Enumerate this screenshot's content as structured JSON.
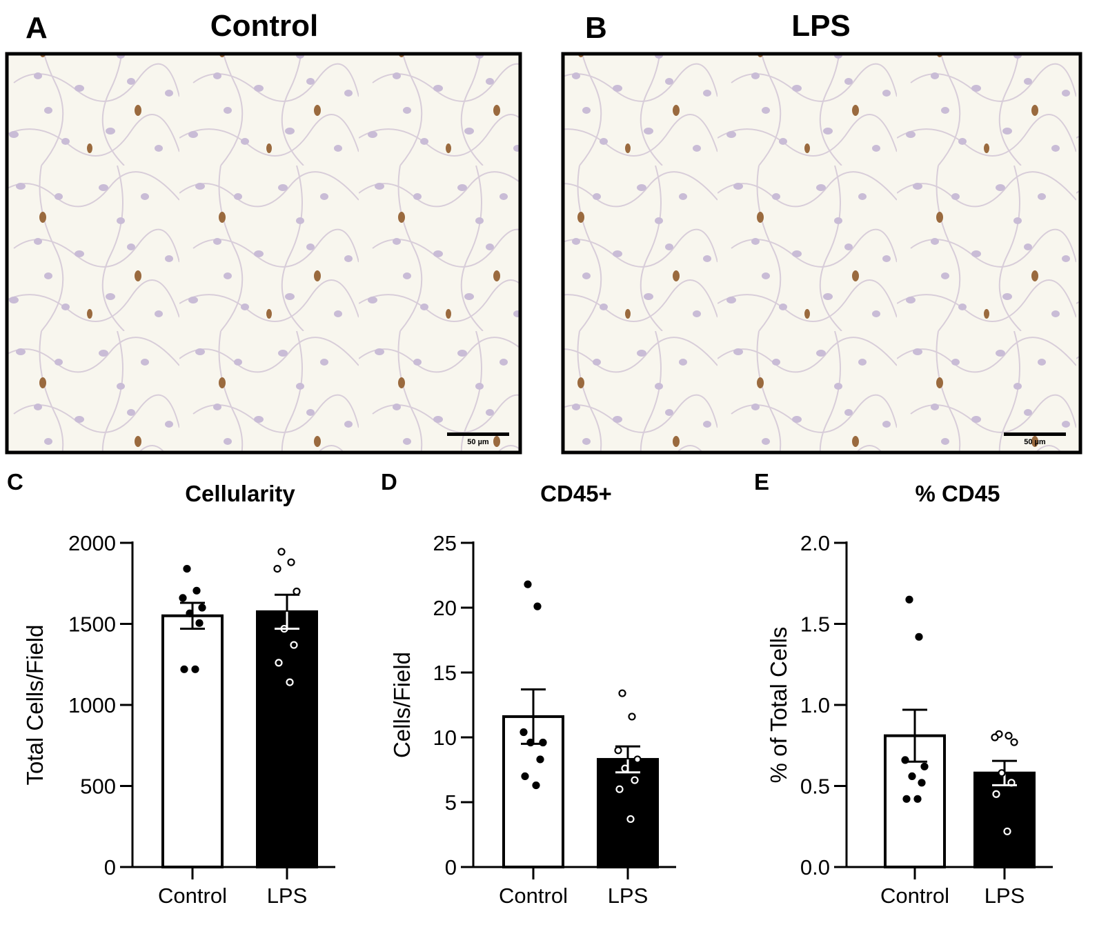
{
  "panels_top": [
    {
      "letter": "A",
      "title": "Control",
      "scale_bar": "50 µm"
    },
    {
      "letter": "B",
      "title": "LPS",
      "scale_bar": "50 µm"
    }
  ],
  "charts": {
    "C": {
      "letter": "C"
    },
    "D": {
      "letter": "D"
    },
    "E": {
      "letter": "E"
    }
  },
  "chart_data": [
    {
      "type": "bar",
      "panel": "C",
      "title": "Cellularity",
      "ylabel": "Total Cells/Field",
      "ylim": [
        0,
        2000
      ],
      "yticks": [
        "0",
        "500",
        "1000",
        "1500",
        "2000"
      ],
      "categories": [
        "Control",
        "LPS"
      ],
      "values": [
        1550,
        1575
      ],
      "sem": [
        80,
        105
      ],
      "bar_colors": [
        "#ffffff",
        "#000000"
      ],
      "points": [
        [
          1840,
          1705,
          1660,
          1600,
          1565,
          1505,
          1220,
          1220
        ],
        [
          1945,
          1880,
          1840,
          1700,
          1470,
          1370,
          1260,
          1140
        ]
      ]
    },
    {
      "type": "bar",
      "panel": "D",
      "title": "CD45+",
      "ylabel": "Cells/Field",
      "ylim": [
        0,
        25
      ],
      "yticks": [
        "0",
        "5",
        "10",
        "15",
        "20",
        "25"
      ],
      "categories": [
        "Control",
        "LPS"
      ],
      "values": [
        11.6,
        8.3
      ],
      "sem": [
        2.1,
        1.0
      ],
      "bar_colors": [
        "#ffffff",
        "#000000"
      ],
      "points": [
        [
          21.8,
          20.1,
          10.4,
          9.6,
          9.6,
          8.3,
          7.0,
          6.3
        ],
        [
          13.4,
          11.6,
          9.0,
          8.3,
          7.6,
          6.7,
          6.0,
          3.7
        ]
      ]
    },
    {
      "type": "bar",
      "panel": "E",
      "title": "% CD45",
      "ylabel": "% of Total Cells",
      "ylim": [
        0.0,
        2.0
      ],
      "yticks": [
        "0.0",
        "0.5",
        "1.0",
        "1.5",
        "2.0"
      ],
      "categories": [
        "Control",
        "LPS"
      ],
      "values": [
        0.81,
        0.58
      ],
      "sem": [
        0.16,
        0.075
      ],
      "bar_colors": [
        "#ffffff",
        "#000000"
      ],
      "points": [
        [
          1.65,
          1.42,
          0.66,
          0.62,
          0.56,
          0.52,
          0.42,
          0.42
        ],
        [
          0.82,
          0.81,
          0.8,
          0.77,
          0.58,
          0.52,
          0.45,
          0.22
        ]
      ]
    }
  ]
}
